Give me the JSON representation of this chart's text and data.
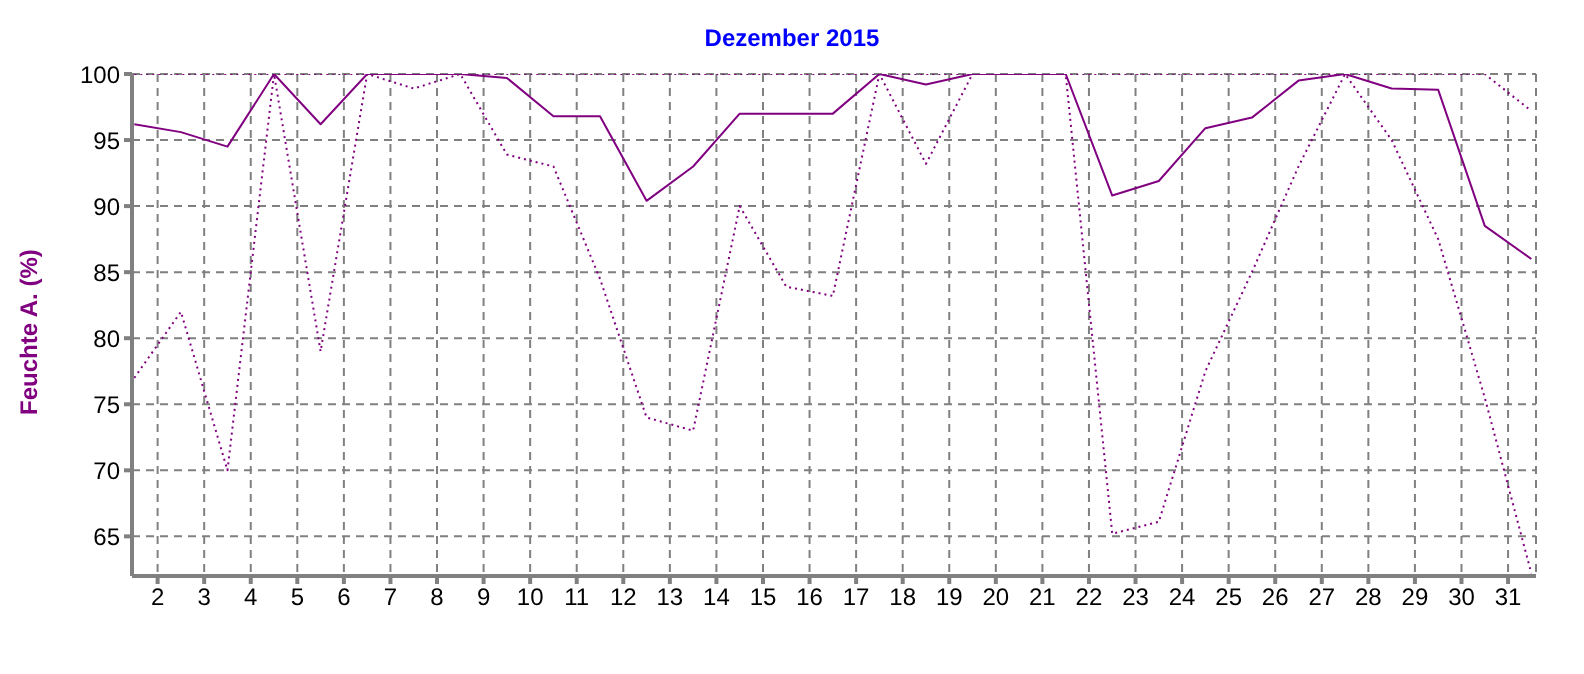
{
  "chart_data": {
    "type": "line",
    "title": "Dezember 2015",
    "ylabel": "Feuchte A.  (%)",
    "x": [
      1.5,
      2.5,
      3.5,
      4.5,
      5.5,
      6.5,
      7.5,
      8.5,
      9.5,
      10.5,
      11.5,
      12.5,
      13.5,
      14.5,
      15.5,
      16.5,
      17.5,
      18.5,
      19.5,
      20.5,
      21.5,
      22.5,
      23.5,
      24.5,
      25.5,
      26.5,
      27.5,
      28.5,
      29.5,
      30.5,
      31.5
    ],
    "xlim": [
      1.45,
      31.6
    ],
    "xticks": [
      2,
      3,
      4,
      5,
      6,
      7,
      8,
      9,
      10,
      11,
      12,
      13,
      14,
      15,
      16,
      17,
      18,
      19,
      20,
      21,
      22,
      23,
      24,
      25,
      26,
      27,
      28,
      29,
      30,
      31
    ],
    "ylim": [
      62,
      100
    ],
    "yticks": [
      65,
      70,
      75,
      80,
      85,
      90,
      95,
      100
    ],
    "grid": true,
    "series": [
      {
        "color": "#800080",
        "line_style": "solid",
        "values": [
          96.2,
          95.6,
          94.5,
          100,
          96.2,
          100,
          100,
          100,
          99.7,
          96.8,
          96.8,
          90.4,
          93,
          97,
          97,
          97,
          100,
          99.2,
          100,
          100,
          100,
          90.8,
          91.9,
          95.9,
          96.7,
          99.5,
          100,
          98.9,
          98.8,
          88.5,
          86
        ]
      },
      {
        "color": "#800080",
        "line_style": "dotted",
        "values": [
          77,
          82,
          70,
          100,
          79,
          100,
          98.9,
          100,
          93.9,
          93,
          84.5,
          74,
          73,
          90,
          83.9,
          83.2,
          100,
          93.2,
          100,
          100,
          100,
          65.2,
          66.1,
          77.5,
          85,
          93,
          100,
          95,
          87.5,
          75.5,
          62.2
        ]
      },
      {
        "color": "#800080",
        "line_style": "dotted",
        "values": [
          100,
          100,
          100,
          100,
          100,
          100,
          100,
          100,
          100,
          100,
          100,
          100,
          100,
          100,
          100,
          100,
          100,
          100,
          100,
          100,
          100,
          100,
          100,
          100,
          100,
          100,
          100,
          100,
          100,
          100,
          97.2
        ]
      }
    ]
  }
}
